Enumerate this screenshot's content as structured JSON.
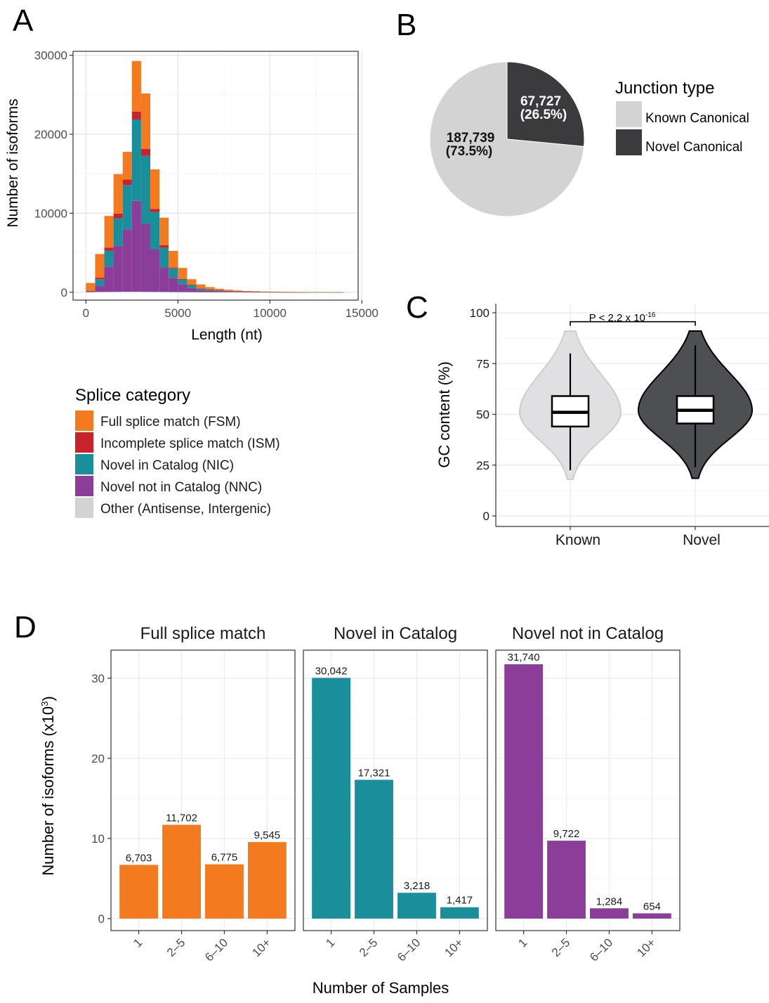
{
  "panels": {
    "A": {
      "letter": "A",
      "chart_data": {
        "type": "bar",
        "stacked": true,
        "xlabel": "Length (nt)",
        "ylabel": "Number of isoforms",
        "xlim": [
          -700,
          14800
        ],
        "ylim": [
          -1000,
          30500
        ],
        "xticks": [
          0,
          5000,
          10000,
          15000
        ],
        "xtick_labels": [
          "0",
          "5000",
          "10000",
          "15000"
        ],
        "yticks": [
          0,
          10000,
          20000,
          30000
        ],
        "ytick_labels": [
          "0",
          "10000",
          "20000",
          "30000"
        ],
        "bin_width": 500,
        "bin_starts": [
          0,
          500,
          1000,
          1500,
          2000,
          2500,
          3000,
          3500,
          4000,
          4500,
          5000,
          5500,
          6000,
          6500,
          7000,
          7500,
          8000,
          8500,
          9000,
          9500,
          10000,
          10500,
          11000,
          11500,
          12000,
          12500,
          13000,
          13500
        ],
        "grid": true,
        "legend_title": "Splice category",
        "legend_position": "bottom",
        "series": [
          {
            "name": "Other (Antisense, Intergenic)",
            "color": "#d3d3d3",
            "values": [
              20,
              40,
              50,
              60,
              70,
              70,
              60,
              50,
              40,
              30,
              25,
              20,
              15,
              10,
              8,
              6,
              5,
              4,
              3,
              2,
              2,
              2,
              1,
              1,
              1,
              1,
              0,
              0
            ]
          },
          {
            "name": "Novel not in Catalog (NNC)",
            "color": "#8a3e99",
            "values": [
              50,
              800,
              3200,
              5800,
              7900,
              11500,
              8600,
              5400,
              3100,
              1800,
              1000,
              500,
              250,
              180,
              120,
              80,
              60,
              40,
              30,
              20,
              15,
              10,
              8,
              6,
              4,
              3,
              2,
              1
            ]
          },
          {
            "name": "Novel in Catalog (NIC)",
            "color": "#1a8f9c",
            "values": [
              80,
              800,
              2000,
              3500,
              5600,
              10300,
              8600,
              4700,
              2500,
              1200,
              600,
              400,
              200,
              150,
              100,
              70,
              50,
              35,
              25,
              15,
              10,
              8,
              6,
              4,
              3,
              2,
              1,
              1
            ]
          },
          {
            "name": "Incomplete splice match (ISM)",
            "color": "#c8222a",
            "values": [
              20,
              200,
              400,
              600,
              700,
              1000,
              900,
              400,
              300,
              100,
              50,
              30,
              20,
              15,
              10,
              8,
              6,
              4,
              3,
              2,
              2,
              1,
              1,
              1,
              0,
              0,
              0,
              0
            ]
          },
          {
            "name": "Full splice match (FSM)",
            "color": "#f47a20",
            "values": [
              1000,
              3000,
              4000,
              5000,
              3500,
              6400,
              7000,
              5000,
              3500,
              2100,
              1400,
              700,
              500,
              300,
              200,
              150,
              100,
              80,
              60,
              40,
              30,
              25,
              20,
              15,
              10,
              8,
              6,
              5
            ]
          }
        ]
      }
    },
    "B": {
      "letter": "B",
      "chart_data": {
        "type": "pie",
        "legend_title": "Junction type",
        "legend_position": "right",
        "slices": [
          {
            "name": "Known Canonical",
            "value": 187739,
            "label_count": "187,739",
            "label_pct": "(73.5%)",
            "color": "#d3d3d4"
          },
          {
            "name": "Novel Canonical",
            "value": 67727,
            "label_count": "67,727",
            "label_pct": "(26.5%)",
            "color": "#3b3b3e"
          }
        ]
      }
    },
    "C": {
      "letter": "C",
      "chart_data": {
        "type": "violin",
        "ylabel": "GC content (%)",
        "ylim": [
          0,
          100
        ],
        "yticks": [
          0,
          25,
          50,
          75,
          100
        ],
        "ytick_labels": [
          "0",
          "25",
          "50",
          "75",
          "100"
        ],
        "categories": [
          "Known",
          "Novel"
        ],
        "grid": true,
        "annotation": {
          "text": "P < 2.2 x 10",
          "superscript": "-16"
        },
        "groups": [
          {
            "name": "Known",
            "fill": "#e0e0e2",
            "stroke": "#cdcdcf",
            "min": 18,
            "max": 91,
            "q1": 44,
            "median": 51,
            "q3": 59,
            "whisker_low": 22.5,
            "whisker_high": 80
          },
          {
            "name": "Novel",
            "fill": "#4e4f52",
            "stroke": "#000000",
            "min": 18.5,
            "max": 91,
            "q1": 45.5,
            "median": 52,
            "q3": 59,
            "whisker_low": 24,
            "whisker_high": 84
          }
        ]
      }
    },
    "D": {
      "letter": "D",
      "chart_data": {
        "type": "bar",
        "xlabel": "Number of Samples",
        "ylabel": "Number of isoforms (x10",
        "ylabel_superscript": "3",
        "ylabel_close": ")",
        "ylim": [
          -1.5,
          33.5
        ],
        "yticks": [
          0,
          10,
          20,
          30
        ],
        "ytick_labels": [
          "0",
          "10",
          "20",
          "30"
        ],
        "categories": [
          "1",
          "2–5",
          "6–10",
          "10+"
        ],
        "grid": true,
        "facets": [
          {
            "title": "Full splice match",
            "color": "#f47a20",
            "values": [
              6.703,
              11.702,
              6.775,
              9.545
            ],
            "labels": [
              "6,703",
              "11,702",
              "6,775",
              "9,545"
            ]
          },
          {
            "title": "Novel in Catalog",
            "color": "#1a8f9c",
            "values": [
              30.042,
              17.321,
              3.218,
              1.417
            ],
            "labels": [
              "30,042",
              "17,321",
              "3,218",
              "1,417"
            ]
          },
          {
            "title": "Novel not in Catalog",
            "color": "#8a3e99",
            "values": [
              31.74,
              9.722,
              1.284,
              0.654
            ],
            "labels": [
              "31,740",
              "9,722",
              "1,284",
              "654"
            ]
          }
        ]
      }
    }
  },
  "legendA": {
    "title": "Splice category",
    "items": [
      {
        "label": "Full splice match (FSM)",
        "color": "#f47a20"
      },
      {
        "label": "Incomplete splice match (ISM)",
        "color": "#c8222a"
      },
      {
        "label": "Novel in Catalog (NIC)",
        "color": "#1a8f9c"
      },
      {
        "label": "Novel not in Catalog (NNC)",
        "color": "#8a3e99"
      },
      {
        "label": "Other (Antisense, Intergenic)",
        "color": "#d3d3d3"
      }
    ]
  }
}
